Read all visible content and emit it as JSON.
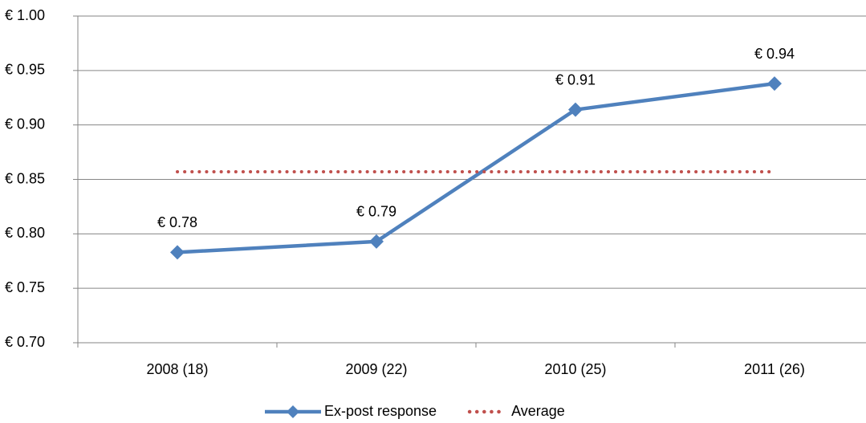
{
  "chart_data": {
    "type": "line",
    "categories": [
      "2008 (18)",
      "2009 (22)",
      "2010 (25)",
      "2011 (26)"
    ],
    "series": [
      {
        "name": "Ex-post response",
        "color": "#4f81bd",
        "values": [
          0.783,
          0.793,
          0.914,
          0.938
        ],
        "value_labels": [
          "€ 0.78",
          "€ 0.79",
          "€ 0.91",
          "€ 0.94"
        ],
        "marker": "diamond"
      },
      {
        "name": "Average",
        "color": "#c0504d",
        "values": [
          0.857,
          0.857,
          0.857,
          0.857
        ],
        "dash": "dotted"
      }
    ],
    "ylim": [
      0.7,
      1.0
    ],
    "yticks": [
      {
        "value": 0.7,
        "label": "€ 0.70"
      },
      {
        "value": 0.75,
        "label": "€ 0.75"
      },
      {
        "value": 0.8,
        "label": "€ 0.80"
      },
      {
        "value": 0.85,
        "label": "€ 0.85"
      },
      {
        "value": 0.9,
        "label": "€ 0.90"
      },
      {
        "value": 0.95,
        "label": "€ 0.95"
      },
      {
        "value": 1.0,
        "label": "€ 1.00"
      }
    ],
    "grid": true,
    "legend": "bottom"
  }
}
